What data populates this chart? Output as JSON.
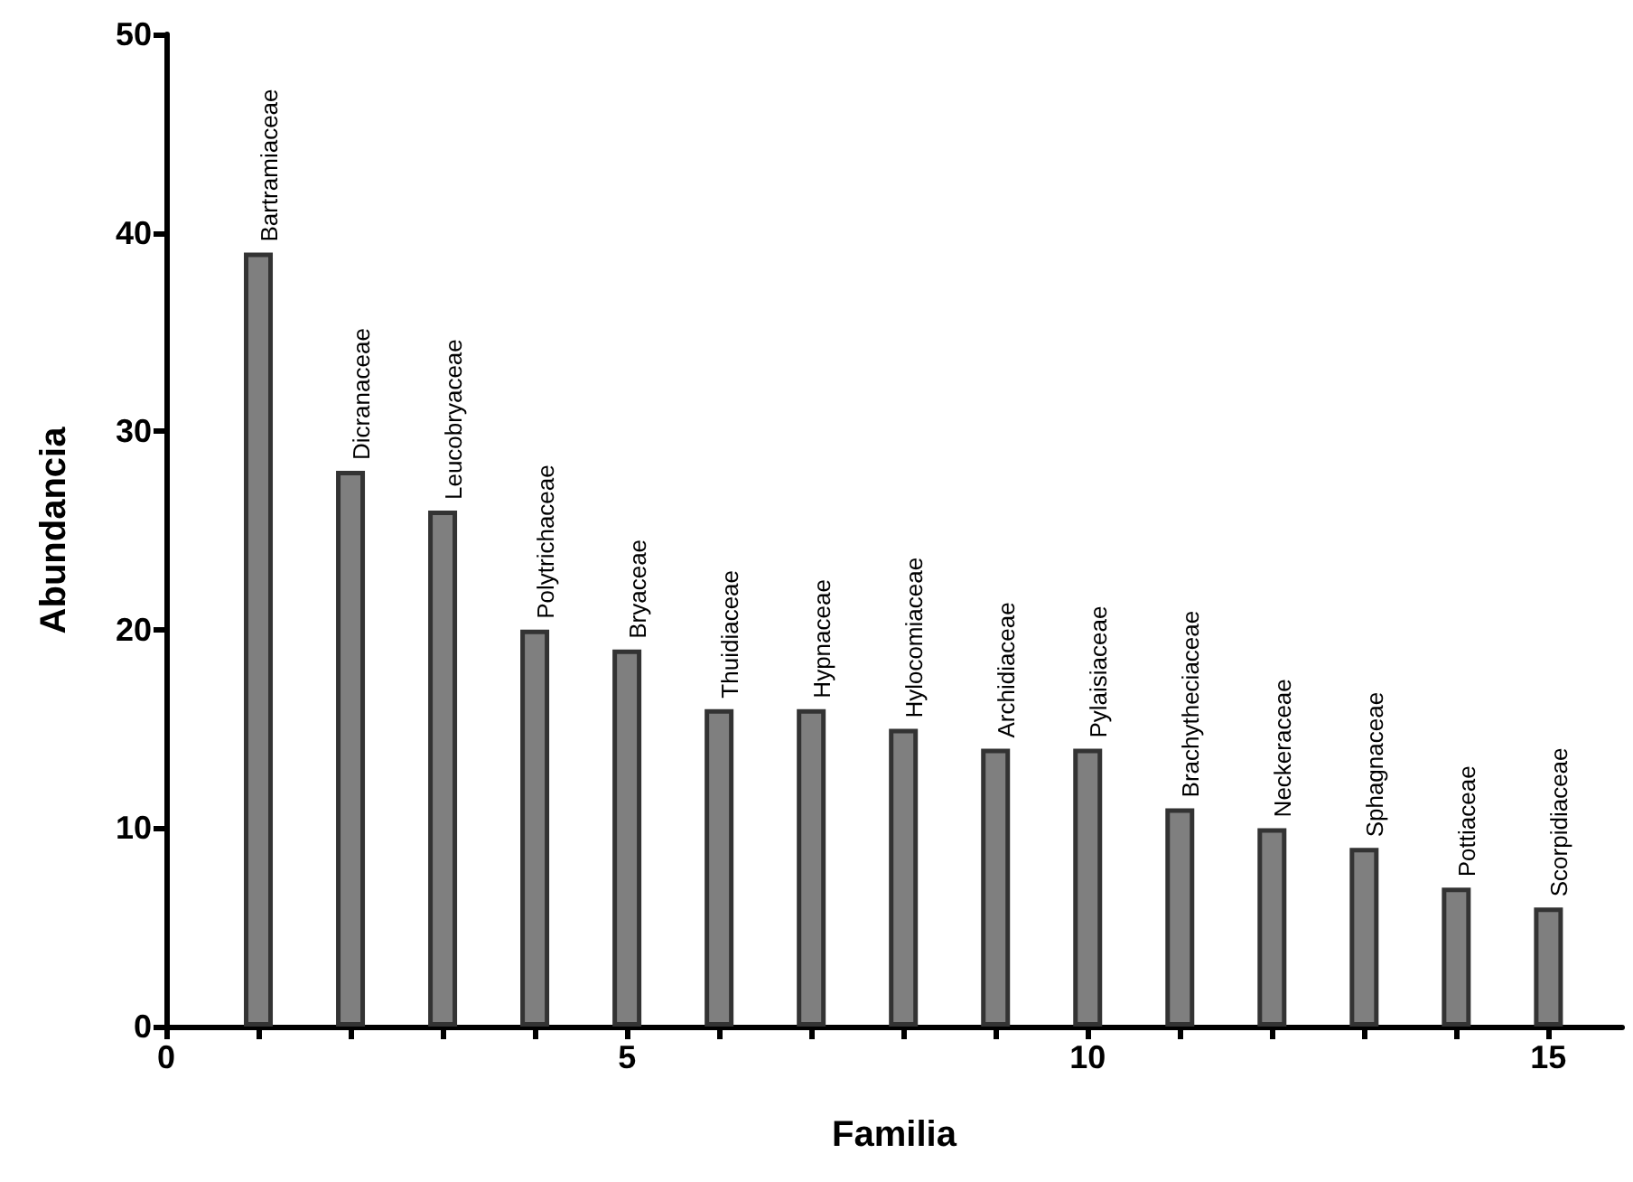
{
  "chart_data": {
    "type": "bar",
    "xlabel": "Familia",
    "ylabel": "Abundancia",
    "x": [
      1,
      2,
      3,
      4,
      5,
      6,
      7,
      8,
      9,
      10,
      11,
      12,
      13,
      14,
      15
    ],
    "values": [
      39,
      28,
      26,
      20,
      19,
      16,
      16,
      15,
      14,
      14,
      11,
      10,
      9,
      7,
      6
    ],
    "color": "#7f7f7f",
    "xlim": [
      0,
      15.8
    ],
    "xticks": [
      0,
      {
        "value": 1,
        "label": null
      },
      {
        "value": 2,
        "label": null
      },
      {
        "value": 3,
        "label": null
      },
      {
        "value": 4,
        "label": null
      },
      5,
      {
        "value": 6,
        "label": null
      },
      {
        "value": 7,
        "label": null
      },
      {
        "value": 8,
        "label": null
      },
      {
        "value": 9,
        "label": null
      },
      10,
      {
        "value": 11,
        "label": null
      },
      {
        "value": 12,
        "label": null
      },
      {
        "value": 13,
        "label": null
      },
      {
        "value": 14,
        "label": null
      },
      15
    ],
    "ylim": [
      0,
      50
    ],
    "yticks": [
      0,
      10,
      20,
      30,
      40,
      50
    ],
    "grid": false,
    "annotations": [
      {
        "text": "Bartramiaceae",
        "x": 1,
        "y": 39
      },
      {
        "text": "Dicranaceae",
        "x": 2,
        "y": 28
      },
      {
        "text": "Leucobryaceae",
        "x": 3,
        "y": 26
      },
      {
        "text": "Polytrichaceae",
        "x": 4,
        "y": 20
      },
      {
        "text": "Bryaceae",
        "x": 5,
        "y": 19
      },
      {
        "text": "Thuidiaceae",
        "x": 6,
        "y": 16
      },
      {
        "text": "Hypnaceae",
        "x": 7,
        "y": 16
      },
      {
        "text": "Hylocomiaceae",
        "x": 8,
        "y": 15
      },
      {
        "text": "Archidiaceae",
        "x": 9,
        "y": 14
      },
      {
        "text": "Pylaisiaceae",
        "x": 10,
        "y": 14
      },
      {
        "text": "Brachytheciaceae",
        "x": 11,
        "y": 11
      },
      {
        "text": "Neckeraceae",
        "x": 12,
        "y": 10
      },
      {
        "text": "Sphagnaceae",
        "x": 13,
        "y": 9
      },
      {
        "text": "Pottiaceae",
        "x": 14,
        "y": 7
      },
      {
        "text": "Scorpidiaceae",
        "x": 15,
        "y": 6
      }
    ]
  }
}
